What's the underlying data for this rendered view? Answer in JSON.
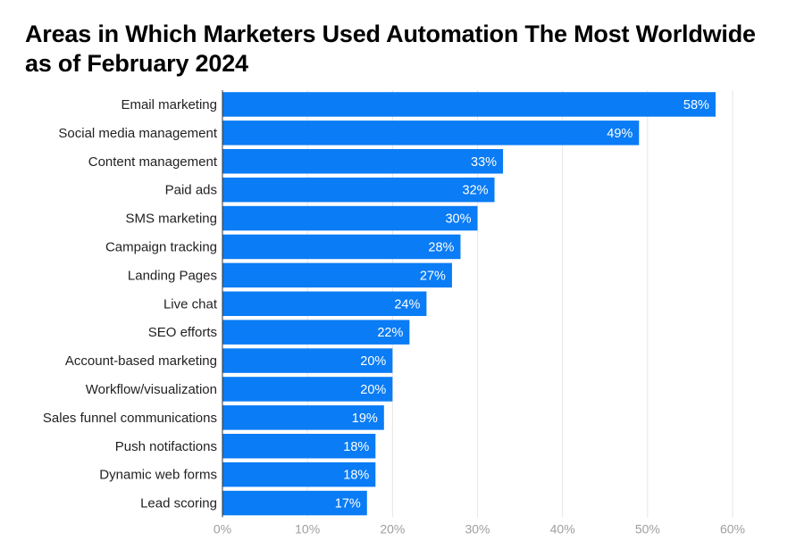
{
  "chart_data": {
    "type": "bar",
    "orientation": "horizontal",
    "title": "Areas in Which Marketers Used Automation The Most Worldwide as of February 2024",
    "categories": [
      "Email marketing",
      "Social media management",
      "Content management",
      "Paid ads",
      "SMS marketing",
      "Campaign tracking",
      "Landing Pages",
      "Live chat",
      "SEO efforts",
      "Account-based marketing",
      "Workflow/visualization",
      "Sales funnel communications",
      "Push notifactions",
      "Dynamic web forms",
      "Lead scoring"
    ],
    "values": [
      58,
      49,
      33,
      32,
      30,
      28,
      27,
      24,
      22,
      20,
      20,
      19,
      18,
      18,
      17
    ],
    "value_labels": [
      "58%",
      "49%",
      "33%",
      "32%",
      "30%",
      "28%",
      "27%",
      "24%",
      "22%",
      "20%",
      "20%",
      "19%",
      "18%",
      "18%",
      "17%"
    ],
    "xlim": [
      0,
      60
    ],
    "xticks": [
      0,
      10,
      20,
      30,
      40,
      50,
      60
    ],
    "xtick_labels": [
      "0%",
      "10%",
      "20%",
      "30%",
      "40%",
      "50%",
      "60%"
    ],
    "xlabel": "",
    "ylabel": "",
    "grid": "vertical",
    "legend": "none",
    "colors": {
      "bar": "#0a7cf5",
      "grid": "#e6e6e6",
      "axis": "#333333"
    }
  }
}
